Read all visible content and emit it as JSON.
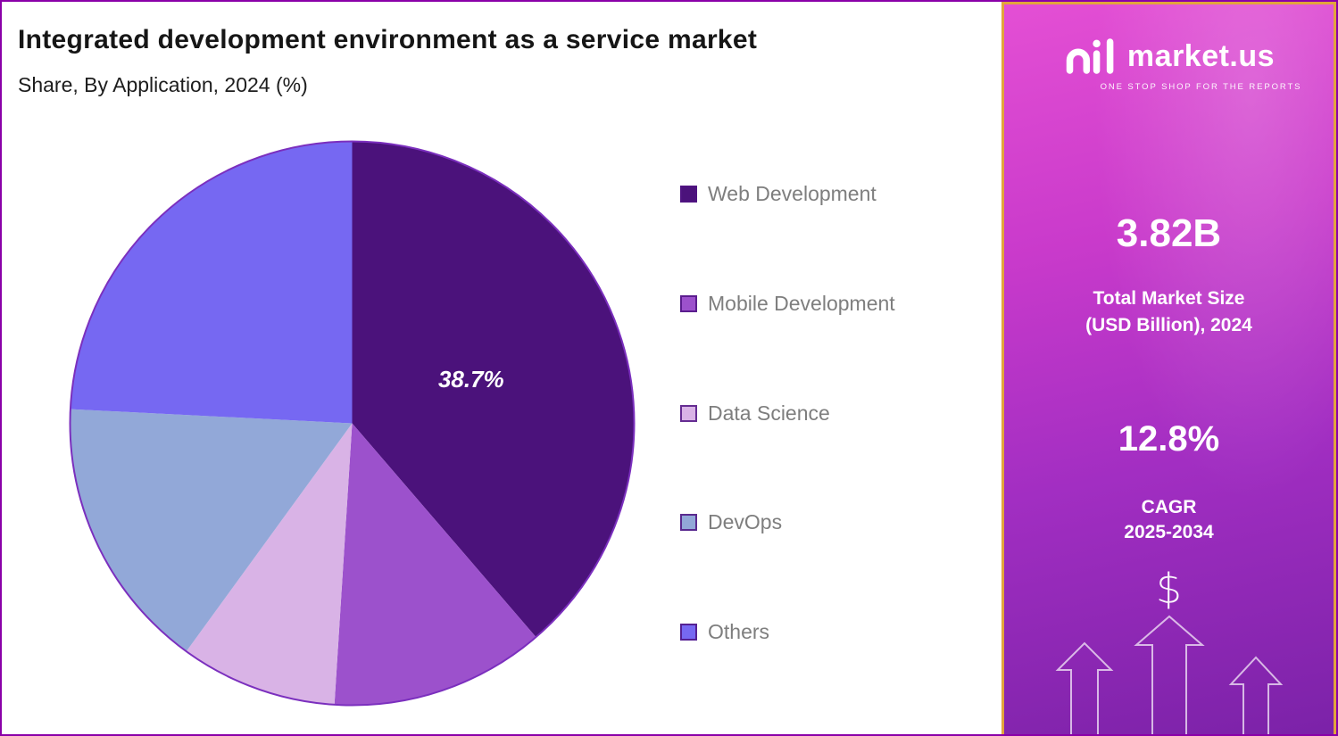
{
  "header": {
    "title": "Integrated development environment as a service market",
    "subtitle": "Share, By Application, 2024 (%)"
  },
  "chart_data": {
    "type": "pie",
    "title": "Integrated development environment as a service market",
    "subtitle": "Share, By Application, 2024 (%)",
    "unit": "%",
    "start_angle_deg": 0,
    "direction": "clockwise",
    "labels": [
      "Web Development",
      "Mobile Development",
      "Data Science",
      "DevOps",
      "Others"
    ],
    "values": [
      38.7,
      12.3,
      9.0,
      15.8,
      24.2
    ],
    "colors": [
      "#4B127B",
      "#9C51CC",
      "#D9B3E6",
      "#92A8D8",
      "#7668F2"
    ],
    "value_labels": [
      "38.7%",
      "",
      "",
      "",
      ""
    ],
    "outline_color": "#7B2FBE",
    "legend_position": "right"
  },
  "sidebar": {
    "brand": {
      "name": "market.us",
      "tagline": "ONE STOP SHOP FOR THE REPORTS"
    },
    "market_size": {
      "value": "3.82B",
      "line1": "Total Market Size",
      "line2": "(USD Billion), 2024"
    },
    "cagr": {
      "value": "12.8%",
      "line1": "CAGR",
      "line2": "2025-2034"
    },
    "dollar_symbol": "$"
  },
  "colors": {
    "page_border": "#8A00A8",
    "panel_border": "#E2A43C",
    "panel_gradient_top": "#E44FD4",
    "panel_gradient_bottom": "#7B22A8",
    "legend_text": "#7E7E7E",
    "title_text": "#161616",
    "slice_label_text": "#FFFFFF"
  }
}
